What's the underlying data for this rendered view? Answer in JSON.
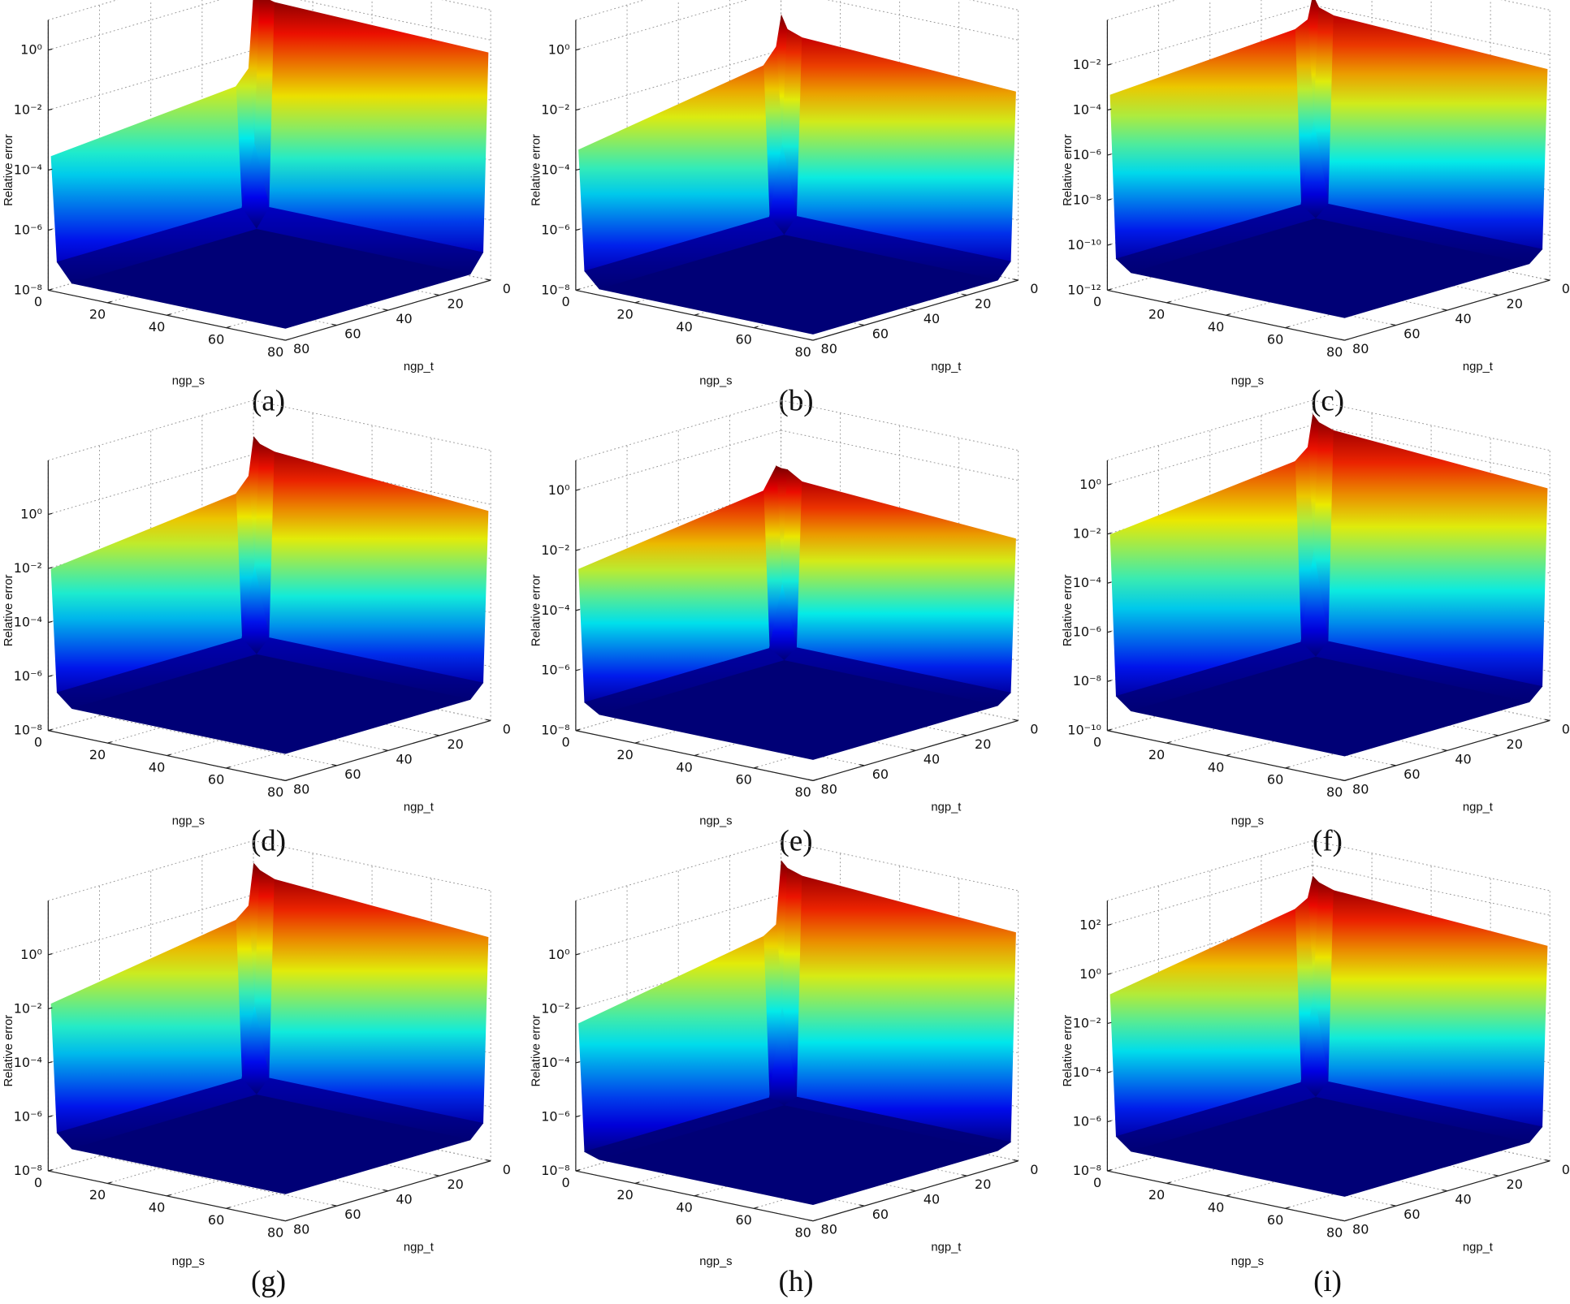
{
  "chart_data": [
    {
      "type": "surface",
      "caption": "(a)",
      "xlabel": "ngp_s",
      "ylabel": "ngp_t",
      "zlabel": "Relative error",
      "zscale": "log",
      "grid": true,
      "colormap": "jet",
      "x": [
        1,
        3,
        8,
        80
      ],
      "y": [
        1,
        3,
        8,
        80
      ],
      "z": [
        [
          1,
          0.003,
          0.001,
          0.0003
        ],
        [
          0.8,
          1e-05,
          1e-07,
          1e-07
        ],
        [
          0.6,
          1e-07,
          2.5e-08,
          2.5e-08
        ],
        [
          0.4,
          1e-07,
          2.5e-08,
          2.5e-08
        ]
      ],
      "xlim": [
        0,
        80
      ],
      "ylim": [
        0,
        80
      ],
      "zlim": [
        1e-08,
        10
      ],
      "xticks": [
        0,
        20,
        40,
        60,
        80
      ],
      "yticks": [
        0,
        20,
        40,
        60,
        80
      ],
      "zticks": [
        {
          "value": 1e-08,
          "label": "10⁻⁸"
        },
        {
          "value": 1e-06,
          "label": "10⁻⁶"
        },
        {
          "value": 0.0001,
          "label": "10⁻⁴"
        },
        {
          "value": 0.01,
          "label": "10⁻²"
        },
        {
          "value": 1,
          "label": "10⁰"
        }
      ]
    },
    {
      "type": "surface",
      "caption": "(b)",
      "xlabel": "ngp_s",
      "ylabel": "ngp_t",
      "zlabel": "Relative error",
      "zscale": "log",
      "grid": true,
      "colormap": "jet",
      "x": [
        1,
        3,
        8,
        80
      ],
      "y": [
        1,
        3,
        8,
        80
      ],
      "z": [
        [
          0.16,
          0.016,
          0.005,
          0.0005
        ],
        [
          0.06,
          1e-05,
          5e-08,
          5e-08
        ],
        [
          0.04,
          5e-08,
          1.6e-08,
          1.6e-08
        ],
        [
          0.02,
          5e-08,
          1.6e-08,
          1.6e-08
        ]
      ],
      "xlim": [
        0,
        80
      ],
      "ylim": [
        0,
        80
      ],
      "zlim": [
        1e-08,
        10
      ],
      "xticks": [
        0,
        20,
        40,
        60,
        80
      ],
      "yticks": [
        0,
        20,
        40,
        60,
        80
      ],
      "zticks": [
        {
          "value": 1e-08,
          "label": "10⁻⁸"
        },
        {
          "value": 1e-06,
          "label": "10⁻⁶"
        },
        {
          "value": 0.0001,
          "label": "10⁻⁴"
        },
        {
          "value": 0.01,
          "label": "10⁻²"
        },
        {
          "value": 1,
          "label": "10⁰"
        }
      ]
    },
    {
      "type": "surface",
      "caption": "(c)",
      "xlabel": "ngp_s",
      "ylabel": "ngp_t",
      "zlabel": "Relative error",
      "zscale": "log",
      "grid": true,
      "colormap": "jet",
      "x": [
        1,
        3,
        8,
        80
      ],
      "y": [
        1,
        3,
        8,
        80
      ],
      "z": [
        [
          0.03,
          0.003,
          0.0016,
          0.0005
        ],
        [
          0.01,
          1e-07,
          3e-11,
          3e-11
        ],
        [
          0.006,
          3e-11,
          1e-11,
          1e-11
        ],
        [
          0.0025,
          3e-11,
          1e-11,
          1e-11
        ]
      ],
      "xlim": [
        0,
        80
      ],
      "ylim": [
        0,
        80
      ],
      "zlim": [
        1e-12,
        1
      ],
      "xticks": [
        0,
        20,
        40,
        60,
        80
      ],
      "yticks": [
        0,
        20,
        40,
        60,
        80
      ],
      "zticks": [
        {
          "value": 1e-12,
          "label": "10⁻¹²"
        },
        {
          "value": 1e-10,
          "label": "10⁻¹⁰"
        },
        {
          "value": 1e-08,
          "label": "10⁻⁸"
        },
        {
          "value": 1e-06,
          "label": "10⁻⁶"
        },
        {
          "value": 0.0001,
          "label": "10⁻⁴"
        },
        {
          "value": 0.01,
          "label": "10⁻²"
        }
      ]
    },
    {
      "type": "surface",
      "caption": "(d)",
      "xlabel": "ngp_s",
      "ylabel": "ngp_t",
      "zlabel": "Relative error",
      "zscale": "log",
      "grid": true,
      "colormap": "jet",
      "x": [
        1,
        3,
        8,
        80
      ],
      "y": [
        1,
        3,
        8,
        80
      ],
      "z": [
        [
          5,
          0.2,
          0.06,
          0.01
        ],
        [
          3,
          0.0001,
          3e-07,
          3e-07
        ],
        [
          2,
          3e-07,
          1e-07,
          1e-07
        ],
        [
          0.6,
          3e-07,
          1e-07,
          1e-07
        ]
      ],
      "xlim": [
        0,
        80
      ],
      "ylim": [
        0,
        80
      ],
      "zlim": [
        1e-08,
        100
      ],
      "xticks": [
        0,
        20,
        40,
        60,
        80
      ],
      "yticks": [
        0,
        20,
        40,
        60,
        80
      ],
      "zticks": [
        {
          "value": 1e-08,
          "label": "10⁻⁸"
        },
        {
          "value": 1e-06,
          "label": "10⁻⁶"
        },
        {
          "value": 0.0001,
          "label": "10⁻⁴"
        },
        {
          "value": 0.01,
          "label": "10⁻²"
        },
        {
          "value": 1,
          "label": "10⁰"
        }
      ]
    },
    {
      "type": "surface",
      "caption": "(e)",
      "xlabel": "ngp_s",
      "ylabel": "ngp_t",
      "zlabel": "Relative error",
      "zscale": "log",
      "grid": true,
      "colormap": "jet",
      "x": [
        1,
        3,
        8,
        80
      ],
      "y": [
        1,
        3,
        8,
        80
      ],
      "z": [
        [
          0.06,
          0.08,
          0.016,
          0.0025
        ],
        [
          0.06,
          1e-05,
          1e-07,
          1e-07
        ],
        [
          0.03,
          1e-07,
          5e-08,
          5e-08
        ],
        [
          0.012,
          1e-07,
          5e-08,
          5e-08
        ]
      ],
      "xlim": [
        0,
        80
      ],
      "ylim": [
        0,
        80
      ],
      "zlim": [
        1e-08,
        10
      ],
      "xticks": [
        0,
        20,
        40,
        60,
        80
      ],
      "yticks": [
        0,
        20,
        40,
        60,
        80
      ],
      "zticks": [
        {
          "value": 1e-08,
          "label": "10⁻⁸"
        },
        {
          "value": 1e-06,
          "label": "10⁻⁶"
        },
        {
          "value": 0.0001,
          "label": "10⁻⁴"
        },
        {
          "value": 0.01,
          "label": "10⁻²"
        },
        {
          "value": 1,
          "label": "10⁰"
        }
      ]
    },
    {
      "type": "surface",
      "caption": "(f)",
      "xlabel": "ngp_s",
      "ylabel": "ngp_t",
      "zlabel": "Relative error",
      "zscale": "log",
      "grid": true,
      "colormap": "jet",
      "x": [
        1,
        3,
        8,
        80
      ],
      "y": [
        1,
        3,
        8,
        80
      ],
      "z": [
        [
          3,
          0.16,
          0.06,
          0.01
        ],
        [
          1.6,
          1e-05,
          3e-09,
          3e-09
        ],
        [
          1,
          3e-09,
          1e-09,
          1e-09
        ],
        [
          0.3,
          3e-09,
          1e-09,
          1e-09
        ]
      ],
      "xlim": [
        0,
        80
      ],
      "ylim": [
        0,
        80
      ],
      "zlim": [
        1e-10,
        10
      ],
      "xticks": [
        0,
        20,
        40,
        60,
        80
      ],
      "yticks": [
        0,
        20,
        40,
        60,
        80
      ],
      "zticks": [
        {
          "value": 1e-10,
          "label": "10⁻¹⁰"
        },
        {
          "value": 1e-08,
          "label": "10⁻⁸"
        },
        {
          "value": 1e-06,
          "label": "10⁻⁶"
        },
        {
          "value": 0.0001,
          "label": "10⁻⁴"
        },
        {
          "value": 0.01,
          "label": "10⁻²"
        },
        {
          "value": 1,
          "label": "10⁰"
        }
      ]
    },
    {
      "type": "surface",
      "caption": "(g)",
      "xlabel": "ngp_s",
      "ylabel": "ngp_t",
      "zlabel": "Relative error",
      "zscale": "log",
      "grid": true,
      "colormap": "jet",
      "x": [
        1,
        3,
        8,
        80
      ],
      "y": [
        1,
        3,
        8,
        80
      ],
      "z": [
        [
          16,
          0.5,
          0.2,
          0.016
        ],
        [
          10,
          0.0001,
          3e-07,
          3e-07
        ],
        [
          6,
          3e-07,
          1e-07,
          1e-07
        ],
        [
          2,
          3e-07,
          1e-07,
          1e-07
        ]
      ],
      "xlim": [
        0,
        80
      ],
      "ylim": [
        0,
        80
      ],
      "zlim": [
        1e-08,
        100
      ],
      "xticks": [
        0,
        20,
        40,
        60,
        80
      ],
      "yticks": [
        0,
        20,
        40,
        60,
        80
      ],
      "zticks": [
        {
          "value": 1e-08,
          "label": "10⁻⁸"
        },
        {
          "value": 1e-06,
          "label": "10⁻⁶"
        },
        {
          "value": 0.0001,
          "label": "10⁻⁴"
        },
        {
          "value": 0.01,
          "label": "10⁻²"
        },
        {
          "value": 1,
          "label": "10⁰"
        }
      ]
    },
    {
      "type": "surface",
      "caption": "(h)",
      "xlabel": "ngp_s",
      "ylabel": "ngp_t",
      "zlabel": "Relative error",
      "zscale": "log",
      "grid": true,
      "colormap": "jet",
      "x": [
        1,
        3,
        8,
        80
      ],
      "y": [
        1,
        3,
        8,
        80
      ],
      "z": [
        [
          20,
          0.1,
          0.05,
          0.003
        ],
        [
          12,
          0.0001,
          6e-08,
          6e-08
        ],
        [
          8,
          6e-08,
          4e-08,
          4e-08
        ],
        [
          3,
          6e-08,
          4e-08,
          4e-08
        ]
      ],
      "xlim": [
        0,
        80
      ],
      "ylim": [
        0,
        80
      ],
      "zlim": [
        1e-08,
        100
      ],
      "xticks": [
        0,
        20,
        40,
        60,
        80
      ],
      "yticks": [
        0,
        20,
        40,
        60,
        80
      ],
      "zticks": [
        {
          "value": 1e-08,
          "label": "10⁻⁸"
        },
        {
          "value": 1e-06,
          "label": "10⁻⁶"
        },
        {
          "value": 0.0001,
          "label": "10⁻⁴"
        },
        {
          "value": 0.01,
          "label": "10⁻²"
        },
        {
          "value": 1,
          "label": "10⁰"
        }
      ]
    },
    {
      "type": "surface",
      "caption": "(i)",
      "xlabel": "ngp_s",
      "ylabel": "ngp_t",
      "zlabel": "Relative error",
      "zscale": "log",
      "grid": true,
      "colormap": "jet",
      "x": [
        1,
        3,
        8,
        80
      ],
      "y": [
        1,
        3,
        8,
        80
      ],
      "z": [
        [
          40,
          6,
          3,
          0.16
        ],
        [
          25,
          0.001,
          3e-07,
          3e-07
        ],
        [
          16,
          3e-07,
          1e-07,
          1e-07
        ],
        [
          6,
          3e-07,
          1e-07,
          1e-07
        ]
      ],
      "xlim": [
        0,
        80
      ],
      "ylim": [
        0,
        80
      ],
      "zlim": [
        1e-08,
        1000
      ],
      "xticks": [
        0,
        20,
        40,
        60,
        80
      ],
      "yticks": [
        0,
        20,
        40,
        60,
        80
      ],
      "zticks": [
        {
          "value": 1e-08,
          "label": "10⁻⁸"
        },
        {
          "value": 1e-06,
          "label": "10⁻⁶"
        },
        {
          "value": 0.0001,
          "label": "10⁻⁴"
        },
        {
          "value": 0.01,
          "label": "10⁻²"
        },
        {
          "value": 1,
          "label": "10⁰"
        },
        {
          "value": 100,
          "label": "10²"
        }
      ]
    }
  ]
}
